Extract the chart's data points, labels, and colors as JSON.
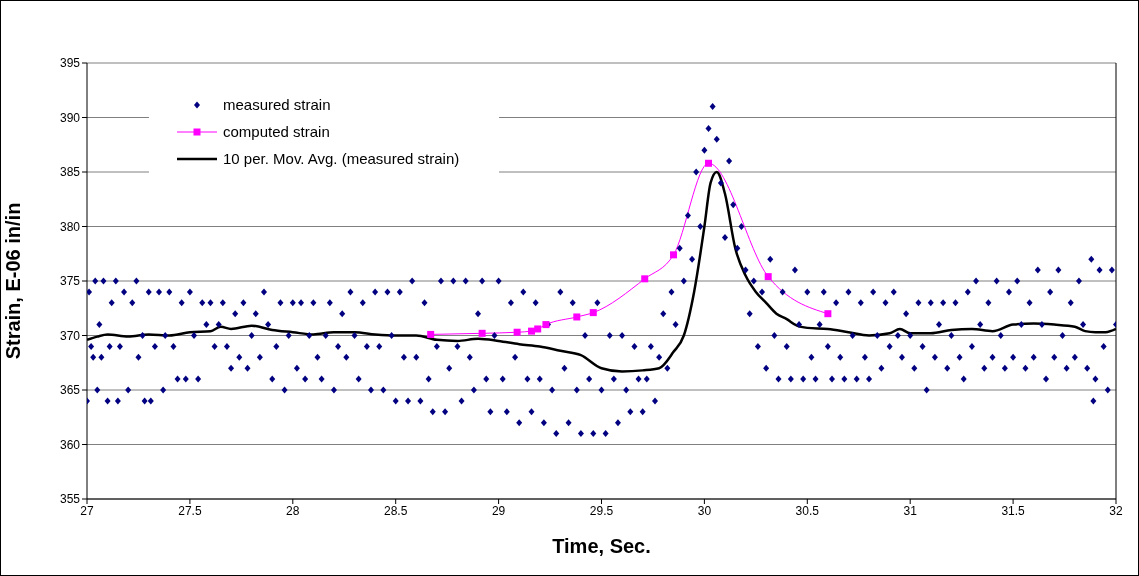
{
  "chart_data": {
    "type": "scatter",
    "xlabel": "Time, Sec.",
    "ylabel": "Strain, E-06 in/in",
    "xlim": [
      27,
      32
    ],
    "xticks": [
      27,
      27.5,
      28,
      28.5,
      29,
      29.5,
      30,
      30.5,
      31,
      31.5,
      32
    ],
    "ylim": [
      355,
      395
    ],
    "yticks": [
      355,
      360,
      365,
      370,
      375,
      380,
      385,
      390,
      395
    ],
    "grid": "y",
    "legend": "top left",
    "series": [
      {
        "name": "measured strain",
        "marker": "diamond",
        "color": "#000080",
        "x": [
          27.0,
          27.01,
          27.02,
          27.03,
          27.04,
          27.05,
          27.06,
          27.07,
          27.08,
          27.1,
          27.11,
          27.12,
          27.14,
          27.15,
          27.16,
          27.18,
          27.2,
          27.22,
          27.24,
          27.25,
          27.27,
          27.28,
          27.3,
          27.31,
          27.33,
          27.35,
          27.37,
          27.38,
          27.4,
          27.42,
          27.44,
          27.46,
          27.48,
          27.5,
          27.52,
          27.54,
          27.56,
          27.58,
          27.6,
          27.62,
          27.64,
          27.66,
          27.68,
          27.7,
          27.72,
          27.74,
          27.76,
          27.78,
          27.8,
          27.82,
          27.84,
          27.86,
          27.88,
          27.9,
          27.92,
          27.94,
          27.96,
          27.98,
          28.0,
          28.02,
          28.04,
          28.06,
          28.08,
          28.1,
          28.12,
          28.14,
          28.16,
          28.18,
          28.2,
          28.22,
          28.24,
          28.26,
          28.28,
          28.3,
          28.32,
          28.34,
          28.36,
          28.38,
          28.4,
          28.42,
          28.44,
          28.46,
          28.48,
          28.5,
          28.52,
          28.54,
          28.56,
          28.58,
          28.6,
          28.62,
          28.64,
          28.66,
          28.68,
          28.7,
          28.72,
          28.74,
          28.76,
          28.78,
          28.8,
          28.82,
          28.84,
          28.86,
          28.88,
          28.9,
          28.92,
          28.94,
          28.96,
          28.98,
          29.0,
          29.02,
          29.04,
          29.06,
          29.08,
          29.1,
          29.12,
          29.14,
          29.16,
          29.18,
          29.2,
          29.22,
          29.24,
          29.26,
          29.28,
          29.3,
          29.32,
          29.34,
          29.36,
          29.38,
          29.4,
          29.42,
          29.44,
          29.46,
          29.48,
          29.5,
          29.52,
          29.54,
          29.56,
          29.58,
          29.6,
          29.62,
          29.64,
          29.66,
          29.68,
          29.7,
          29.72,
          29.74,
          29.76,
          29.78,
          29.8,
          29.82,
          29.84,
          29.86,
          29.88,
          29.9,
          29.92,
          29.94,
          29.96,
          29.98,
          30.0,
          30.02,
          30.04,
          30.06,
          30.08,
          30.1,
          30.12,
          30.14,
          30.16,
          30.18,
          30.2,
          30.22,
          30.24,
          30.26,
          30.28,
          30.3,
          30.32,
          30.34,
          30.36,
          30.38,
          30.4,
          30.42,
          30.44,
          30.46,
          30.48,
          30.5,
          30.52,
          30.54,
          30.56,
          30.58,
          30.6,
          30.62,
          30.64,
          30.66,
          30.68,
          30.7,
          30.72,
          30.74,
          30.76,
          30.78,
          30.8,
          30.82,
          30.84,
          30.86,
          30.88,
          30.9,
          30.92,
          30.94,
          30.96,
          30.98,
          31.0,
          31.02,
          31.04,
          31.06,
          31.08,
          31.1,
          31.12,
          31.14,
          31.16,
          31.18,
          31.2,
          31.22,
          31.24,
          31.26,
          31.28,
          31.3,
          31.32,
          31.34,
          31.36,
          31.38,
          31.4,
          31.42,
          31.44,
          31.46,
          31.48,
          31.5,
          31.52,
          31.54,
          31.56,
          31.58,
          31.6,
          31.62,
          31.64,
          31.66,
          31.68,
          31.7,
          31.72,
          31.74,
          31.76,
          31.78,
          31.8,
          31.82,
          31.84,
          31.86,
          31.88,
          31.89,
          31.9,
          31.92,
          31.94,
          31.96,
          31.98,
          32.0
        ],
        "values": [
          364,
          374,
          369,
          368,
          375,
          365,
          371,
          368,
          375,
          364,
          369,
          373,
          375,
          364,
          369,
          374,
          365,
          373,
          375,
          368,
          370,
          364,
          374,
          364,
          369,
          374,
          365,
          370,
          374,
          369,
          366,
          373,
          366,
          374,
          370,
          366,
          373,
          371,
          373,
          369,
          371,
          373,
          369,
          367,
          372,
          368,
          373,
          367,
          370,
          372,
          368,
          374,
          371,
          366,
          369,
          373,
          365,
          370,
          373,
          367,
          373,
          366,
          370,
          373,
          368,
          366,
          370,
          373,
          365,
          369,
          372,
          368,
          374,
          370,
          366,
          373,
          369,
          365,
          374,
          369,
          365,
          374,
          370,
          364,
          374,
          368,
          364,
          375,
          368,
          364,
          373,
          366,
          363,
          369,
          375,
          363,
          367,
          375,
          369,
          364,
          375,
          368,
          365,
          372,
          375,
          366,
          363,
          370,
          375,
          366,
          363,
          373,
          368,
          362,
          374,
          366,
          363,
          373,
          366,
          362,
          371,
          365,
          361,
          374,
          367,
          362,
          373,
          365,
          361,
          370,
          366,
          361,
          373,
          365,
          361,
          370,
          366,
          362,
          370,
          365,
          363,
          369,
          366,
          363,
          366,
          369,
          364,
          368,
          372,
          367,
          374,
          371,
          378,
          375,
          381,
          377,
          385,
          380,
          387,
          389,
          391,
          388,
          384,
          379,
          386,
          382,
          378,
          380,
          376,
          372,
          375,
          369,
          374,
          367,
          377,
          370,
          366,
          374,
          369,
          366,
          376,
          371,
          366,
          374,
          368,
          366,
          371,
          374,
          369,
          366,
          373,
          368,
          366,
          374,
          370,
          366,
          373,
          368,
          366,
          374,
          370,
          367,
          373,
          369,
          374,
          370,
          368,
          372,
          370,
          367,
          373,
          369,
          365,
          373,
          368,
          371,
          373,
          367,
          370,
          373,
          368,
          366,
          374,
          369,
          375,
          371,
          367,
          373,
          368,
          375,
          370,
          367,
          374,
          368,
          375,
          371,
          367,
          373,
          368,
          376,
          371,
          366,
          374,
          368,
          376,
          370,
          367,
          373,
          368,
          375,
          371,
          367,
          377,
          364,
          366,
          376,
          369,
          365,
          376,
          371
        ]
      },
      {
        "name": "computed strain",
        "type": "line",
        "marker": "square",
        "color": "#ff00ff",
        "x": [
          28.67,
          28.92,
          29.09,
          29.16,
          29.19,
          29.23,
          29.38,
          29.46,
          29.71,
          29.85,
          30.02,
          30.31,
          30.6
        ],
        "values": [
          370.1,
          370.2,
          370.3,
          370.4,
          370.6,
          371.0,
          371.7,
          372.1,
          375.2,
          377.4,
          385.8,
          375.4,
          372.0
        ]
      },
      {
        "name": "10 per. Mov. Avg. (measured strain)",
        "type": "line",
        "marker": "none",
        "color": "#000000",
        "x": [
          27,
          27.05,
          27.1,
          27.2,
          27.3,
          27.4,
          27.5,
          27.6,
          27.65,
          27.7,
          27.8,
          27.9,
          28,
          28.1,
          28.2,
          28.3,
          28.4,
          28.5,
          28.6,
          28.7,
          28.8,
          28.9,
          29,
          29.1,
          29.2,
          29.3,
          29.4,
          29.5,
          29.6,
          29.7,
          29.78,
          29.85,
          29.9,
          29.95,
          30,
          30.03,
          30.06,
          30.1,
          30.15,
          30.2,
          30.25,
          30.3,
          30.35,
          30.4,
          30.45,
          30.5,
          30.6,
          30.7,
          30.8,
          30.9,
          30.95,
          31,
          31.1,
          31.2,
          31.3,
          31.4,
          31.5,
          31.6,
          31.7,
          31.8,
          31.85,
          31.9,
          31.95,
          32
        ],
        "values": [
          369.6,
          369.9,
          370.1,
          369.9,
          370.1,
          370.0,
          370.3,
          370.4,
          370.8,
          370.6,
          370.9,
          370.5,
          370.3,
          370.1,
          370.3,
          370.3,
          370.1,
          370.0,
          370.0,
          369.6,
          369.5,
          369.7,
          369.5,
          369.2,
          369.0,
          368.6,
          368.2,
          367.0,
          366.7,
          366.8,
          367.0,
          368.5,
          370,
          374,
          380,
          384,
          385,
          383,
          378,
          375.5,
          374,
          373,
          372,
          371.5,
          370.9,
          370.7,
          370.6,
          370.3,
          370.0,
          370.2,
          370.6,
          370.2,
          370.2,
          370.5,
          370.6,
          370.4,
          371.0,
          371.1,
          371.0,
          370.8,
          370.4,
          370.3,
          370.3,
          370.6
        ]
      }
    ]
  }
}
